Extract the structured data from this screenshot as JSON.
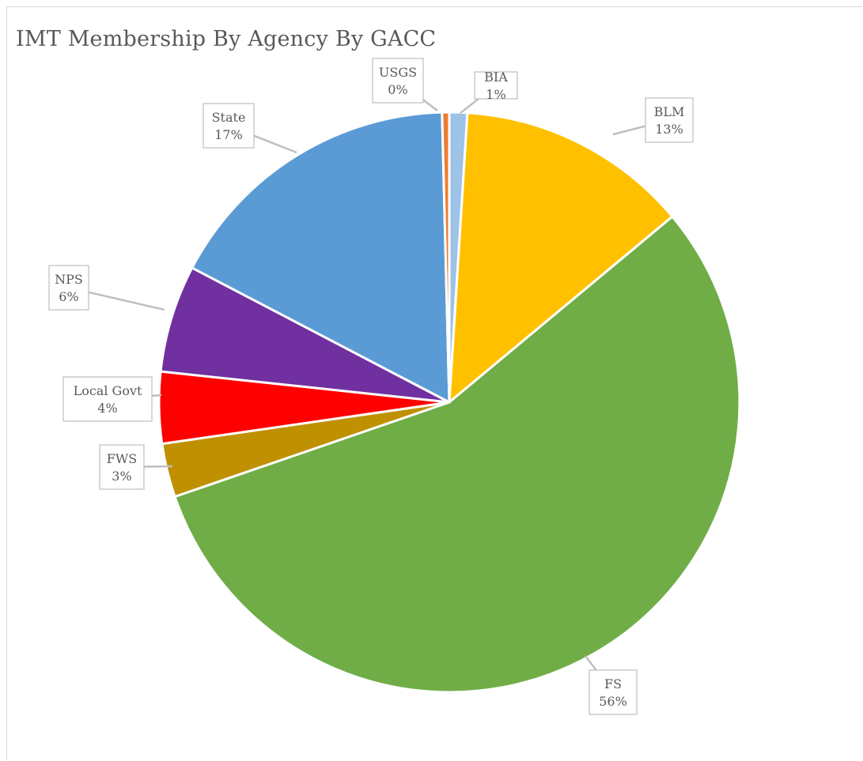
{
  "chart_data": {
    "type": "pie",
    "title": "IMT Membership By Agency By GACC",
    "slices": [
      {
        "name": "BIA",
        "value": 1,
        "label": "1%",
        "color": "#9dc3e6"
      },
      {
        "name": "BLM",
        "value": 13,
        "label": "13%",
        "color": "#ffc000"
      },
      {
        "name": "FS",
        "value": 56,
        "label": "56%",
        "color": "#70ad47"
      },
      {
        "name": "FWS",
        "value": 3,
        "label": "3%",
        "color": "#bf9000"
      },
      {
        "name": "Local Govt",
        "value": 4,
        "label": "4%",
        "color": "#ff0000"
      },
      {
        "name": "NPS",
        "value": 6,
        "label": "6%",
        "color": "#7030a0"
      },
      {
        "name": "State",
        "value": 17,
        "label": "17%",
        "color": "#5b9bd5"
      },
      {
        "name": "USGS",
        "value": 0.4,
        "label": "0%",
        "color": "#ed7d31"
      }
    ]
  }
}
